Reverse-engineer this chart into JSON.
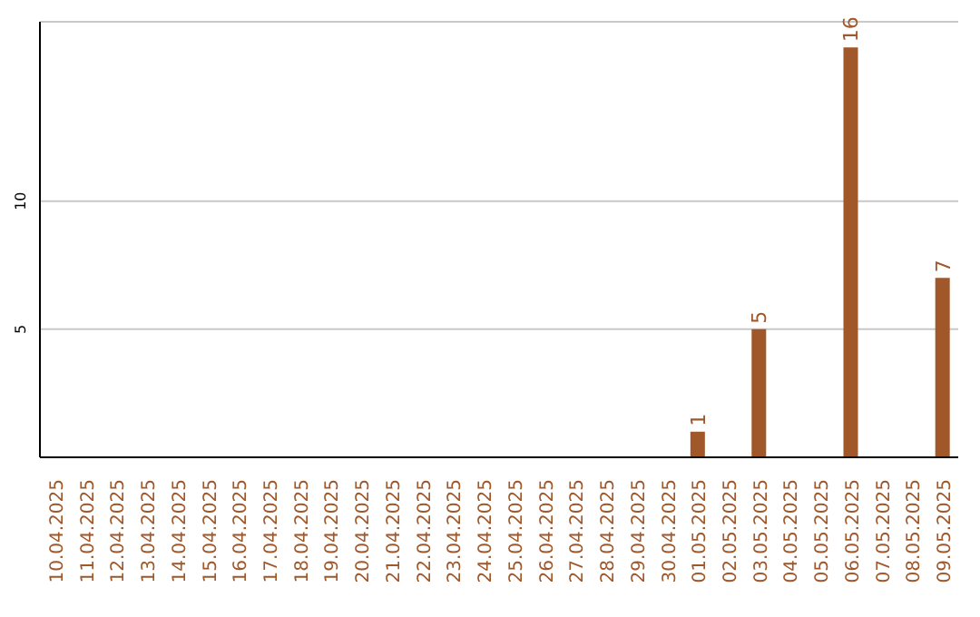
{
  "chart_data": {
    "type": "bar",
    "categories": [
      "10.04.2025",
      "11.04.2025",
      "12.04.2025",
      "13.04.2025",
      "14.04.2025",
      "15.04.2025",
      "16.04.2025",
      "17.04.2025",
      "18.04.2025",
      "19.04.2025",
      "20.04.2025",
      "21.04.2025",
      "22.04.2025",
      "23.04.2025",
      "24.04.2025",
      "25.04.2025",
      "26.04.2025",
      "27.04.2025",
      "28.04.2025",
      "29.04.2025",
      "30.04.2025",
      "01.05.2025",
      "02.05.2025",
      "03.05.2025",
      "04.05.2025",
      "05.05.2025",
      "06.05.2025",
      "07.05.2025",
      "08.05.2025",
      "09.05.2025"
    ],
    "values": [
      0,
      0,
      0,
      0,
      0,
      0,
      0,
      0,
      0,
      0,
      0,
      0,
      0,
      0,
      0,
      0,
      0,
      0,
      0,
      0,
      0,
      1,
      0,
      5,
      0,
      0,
      16,
      0,
      0,
      7
    ],
    "value_labels": [
      null,
      null,
      null,
      null,
      null,
      null,
      null,
      null,
      null,
      null,
      null,
      null,
      null,
      null,
      null,
      null,
      null,
      null,
      null,
      null,
      null,
      "1",
      null,
      "5",
      null,
      null,
      "16",
      null,
      null,
      "7"
    ],
    "color": "#a0572a",
    "ylim": [
      0,
      17
    ],
    "yticks": [
      5,
      10
    ],
    "grid": "y"
  }
}
